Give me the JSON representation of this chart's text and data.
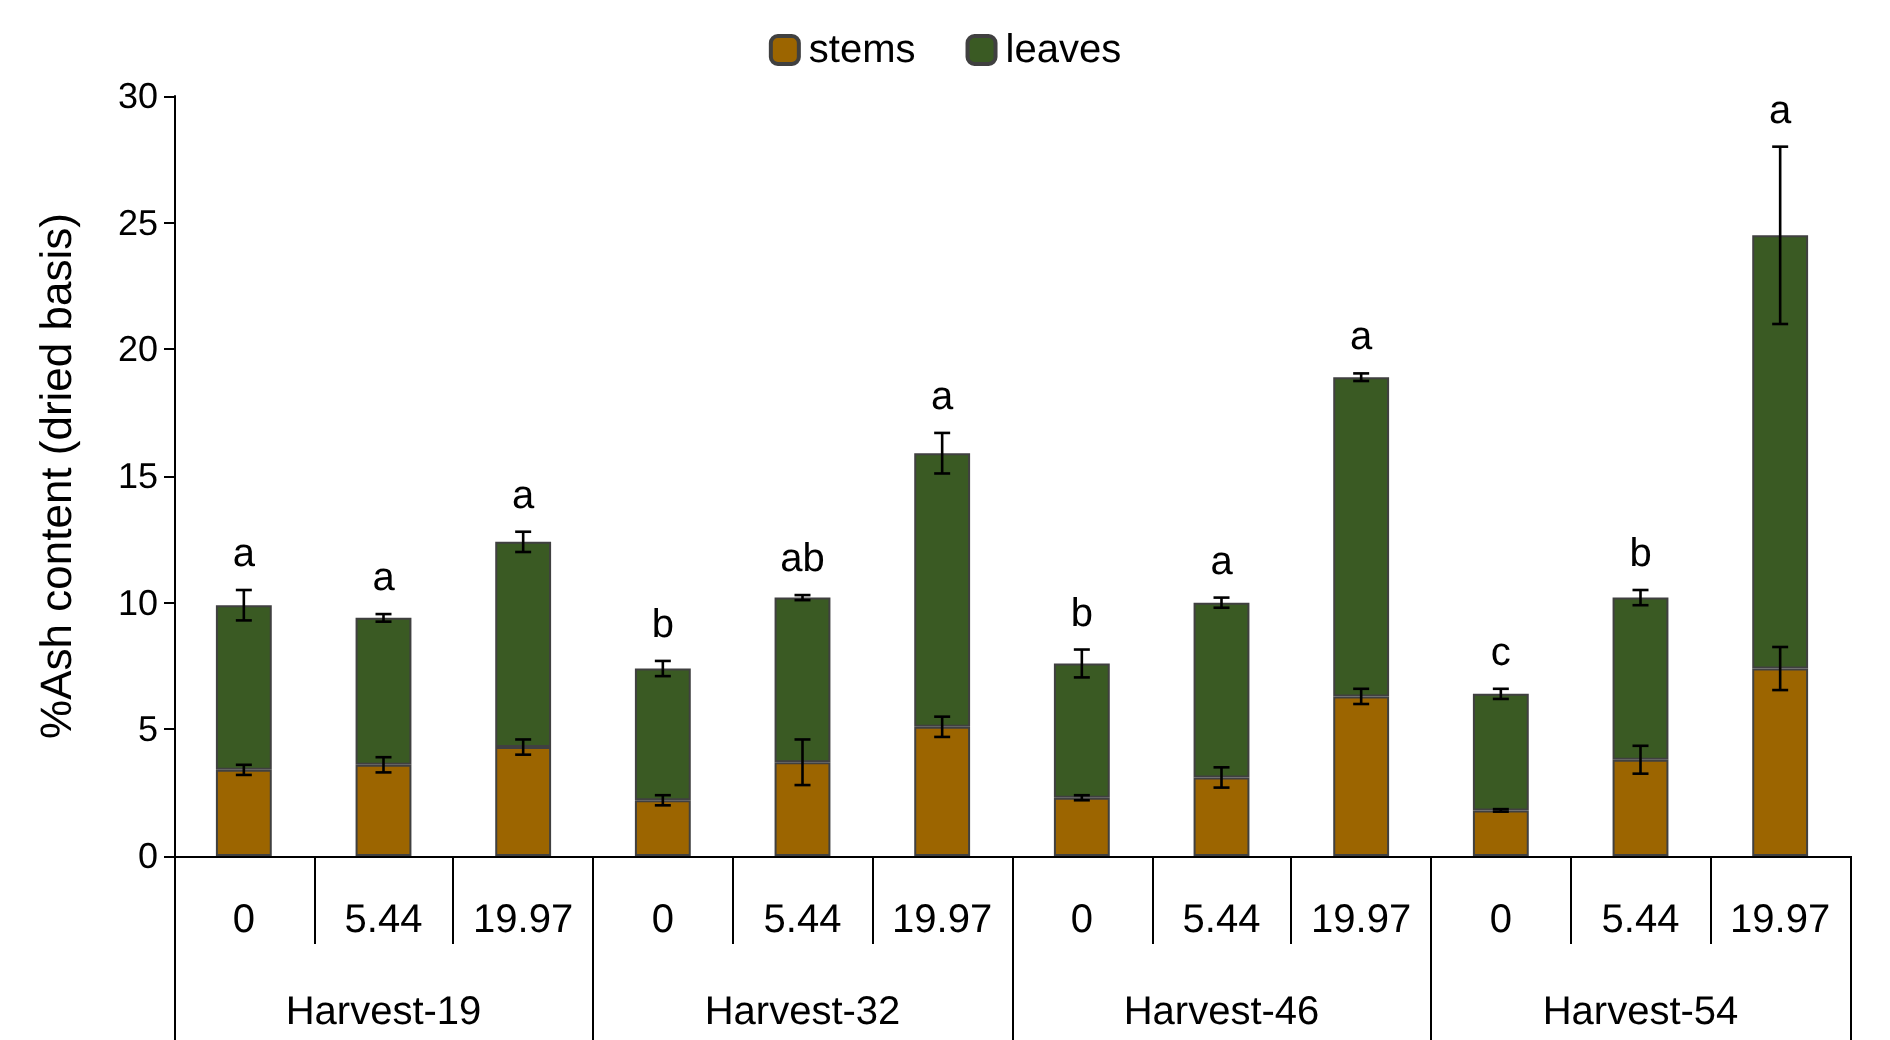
{
  "chart_data": {
    "type": "bar",
    "stacked": true,
    "ylabel": "%Ash content (dried basis)",
    "categories": [
      "0",
      "5.44",
      "19.97",
      "0",
      "5.44",
      "19.97",
      "0",
      "5.44",
      "19.97",
      "0",
      "5.44",
      "19.97"
    ],
    "annotations": [
      "Harvest-19",
      "Harvest-32",
      "Harvest-46",
      "Harvest-54"
    ],
    "series": [
      {
        "name": "stems",
        "color": "#9c6500",
        "values": [
          3.4,
          3.6,
          4.3,
          2.2,
          3.7,
          5.1,
          2.3,
          3.1,
          6.3,
          1.8,
          3.8,
          7.4
        ],
        "errors": [
          0.2,
          0.3,
          0.3,
          0.2,
          0.9,
          0.4,
          0.1,
          0.4,
          0.3,
          0.05,
          0.55,
          0.85
        ]
      },
      {
        "name": "leaves",
        "color": "#3a5a23",
        "values": [
          6.5,
          5.8,
          8.1,
          5.2,
          6.5,
          10.8,
          5.3,
          6.9,
          12.6,
          4.6,
          6.4,
          17.1
        ],
        "errors": [
          0.6,
          0.15,
          0.4,
          0.3,
          0.1,
          0.8,
          0.55,
          0.2,
          0.15,
          0.2,
          0.3,
          3.5
        ],
        "value_labels": [
          "a",
          "a",
          "a",
          "b",
          "ab",
          "a",
          "b",
          "a",
          "a",
          "c",
          "b",
          "a"
        ]
      }
    ],
    "ylim": [
      0,
      30
    ],
    "yticks": [
      0,
      5,
      10,
      15,
      20,
      25,
      30
    ],
    "grid": false,
    "legend": "top"
  }
}
